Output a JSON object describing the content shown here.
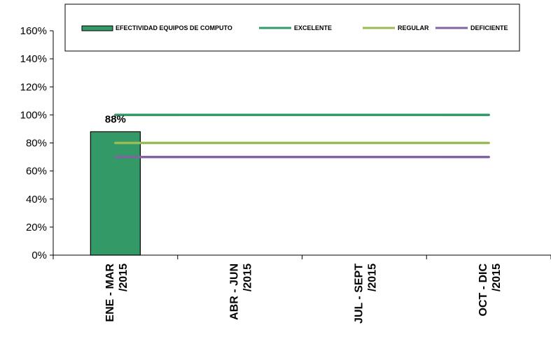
{
  "chart_data": {
    "type": "bar",
    "categories": [
      [
        "ENE - MAR",
        "/2015"
      ],
      [
        "ABR - JUN",
        "/2015"
      ],
      [
        "JUL - SEPT",
        "/2015"
      ],
      [
        "OCT - DIC",
        "/2015"
      ]
    ],
    "series": [
      {
        "name": "EFECTIVIDAD EQUIPOS DE COMPUTO",
        "type": "bar",
        "color": "#339966",
        "values": [
          88,
          null,
          null,
          null
        ],
        "labels": [
          "88%",
          "",
          "",
          ""
        ]
      },
      {
        "name": "EXCELENTE",
        "type": "line",
        "color": "#339966",
        "values": [
          100,
          100,
          100,
          100
        ]
      },
      {
        "name": "REGULAR",
        "type": "line",
        "color": "#99BB55",
        "values": [
          80,
          80,
          80,
          80
        ]
      },
      {
        "name": "DEFICIENTE",
        "type": "line",
        "color": "#8064A2",
        "values": [
          70,
          70,
          70,
          70
        ]
      }
    ],
    "ylim": [
      0,
      160
    ],
    "yticks": [
      {
        "v": 0,
        "label": "0%"
      },
      {
        "v": 20,
        "label": "20%"
      },
      {
        "v": 40,
        "label": "40%"
      },
      {
        "v": 60,
        "label": "60%"
      },
      {
        "v": 80,
        "label": "80%"
      },
      {
        "v": 100,
        "label": "100%"
      },
      {
        "v": 120,
        "label": "120%"
      },
      {
        "v": 140,
        "label": "140%"
      },
      {
        "v": 160,
        "label": "160%"
      }
    ],
    "legend_position": "top",
    "grid": false
  }
}
